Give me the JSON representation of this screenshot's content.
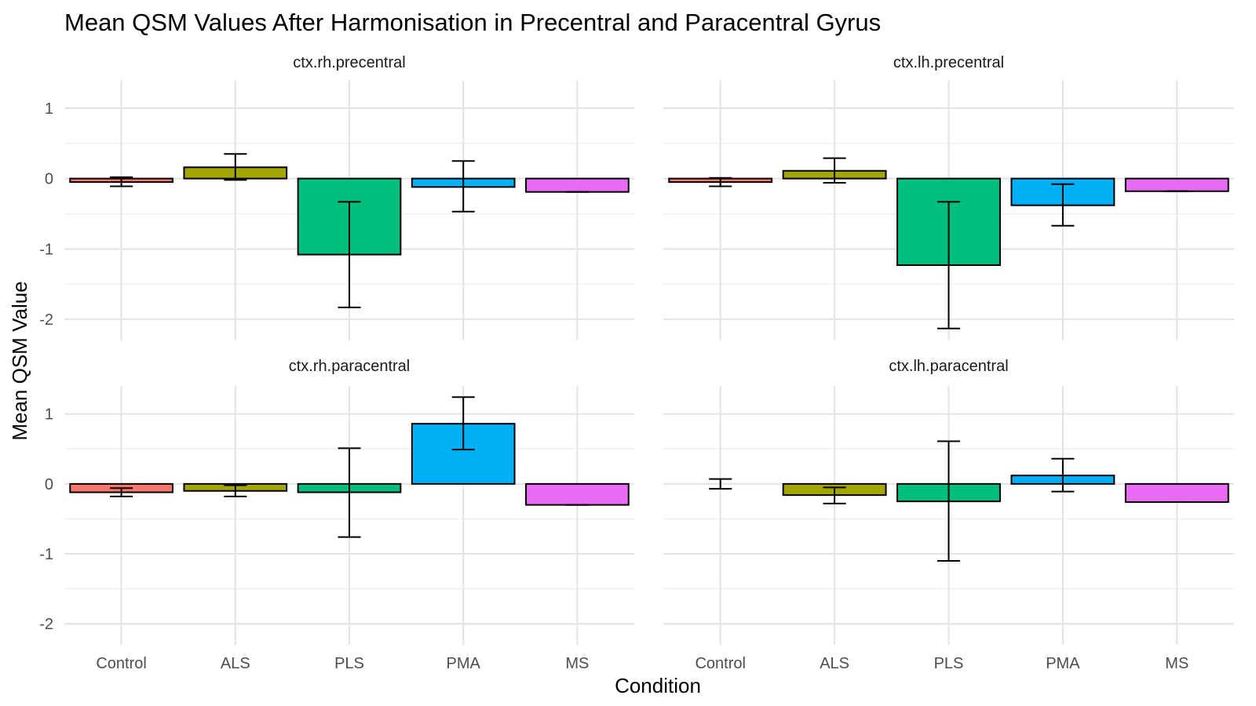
{
  "chart_data": {
    "type": "bar",
    "title": "Mean QSM Values After Harmonisation in Precentral and Paracentral Gyrus",
    "xlabel": "Condition",
    "ylabel": "Mean QSM Value",
    "categories": [
      "Control",
      "ALS",
      "PLS",
      "PMA",
      "MS"
    ],
    "category_colors": [
      "#F8766D",
      "#A3A500",
      "#00BF7D",
      "#00B0F6",
      "#E76BF3"
    ],
    "ylim": [
      -2.3,
      1.4
    ],
    "yticks": [
      -2,
      -1,
      0,
      1
    ],
    "ytick_labels": [
      "-2",
      "-1",
      "0",
      "1"
    ],
    "grid": true,
    "legend": "none",
    "facets": [
      {
        "name": "ctx.rh.precentral",
        "values": [
          -0.05,
          0.16,
          -1.08,
          -0.12,
          -0.19
        ],
        "error_low": [
          -0.11,
          -0.02,
          -1.83,
          -0.47,
          -0.19
        ],
        "error_high": [
          0.02,
          0.35,
          -0.33,
          0.25,
          -0.19
        ]
      },
      {
        "name": "ctx.lh.precentral",
        "values": [
          -0.05,
          0.11,
          -1.23,
          -0.38,
          -0.18
        ],
        "error_low": [
          -0.11,
          -0.06,
          -2.13,
          -0.67,
          -0.18
        ],
        "error_high": [
          0.01,
          0.29,
          -0.33,
          -0.08,
          -0.18
        ]
      },
      {
        "name": "ctx.rh.paracentral",
        "values": [
          -0.12,
          -0.1,
          -0.12,
          0.86,
          -0.3
        ],
        "error_low": [
          -0.18,
          -0.18,
          -0.76,
          0.49,
          -0.3
        ],
        "error_high": [
          -0.06,
          -0.02,
          0.51,
          1.24,
          -0.3
        ]
      },
      {
        "name": "ctx.lh.paracentral",
        "values": [
          0.0,
          -0.16,
          -0.25,
          0.12,
          -0.26
        ],
        "error_low": [
          -0.07,
          -0.28,
          -1.1,
          -0.11,
          -0.26
        ],
        "error_high": [
          0.07,
          -0.05,
          0.61,
          0.36,
          -0.26
        ]
      }
    ]
  }
}
